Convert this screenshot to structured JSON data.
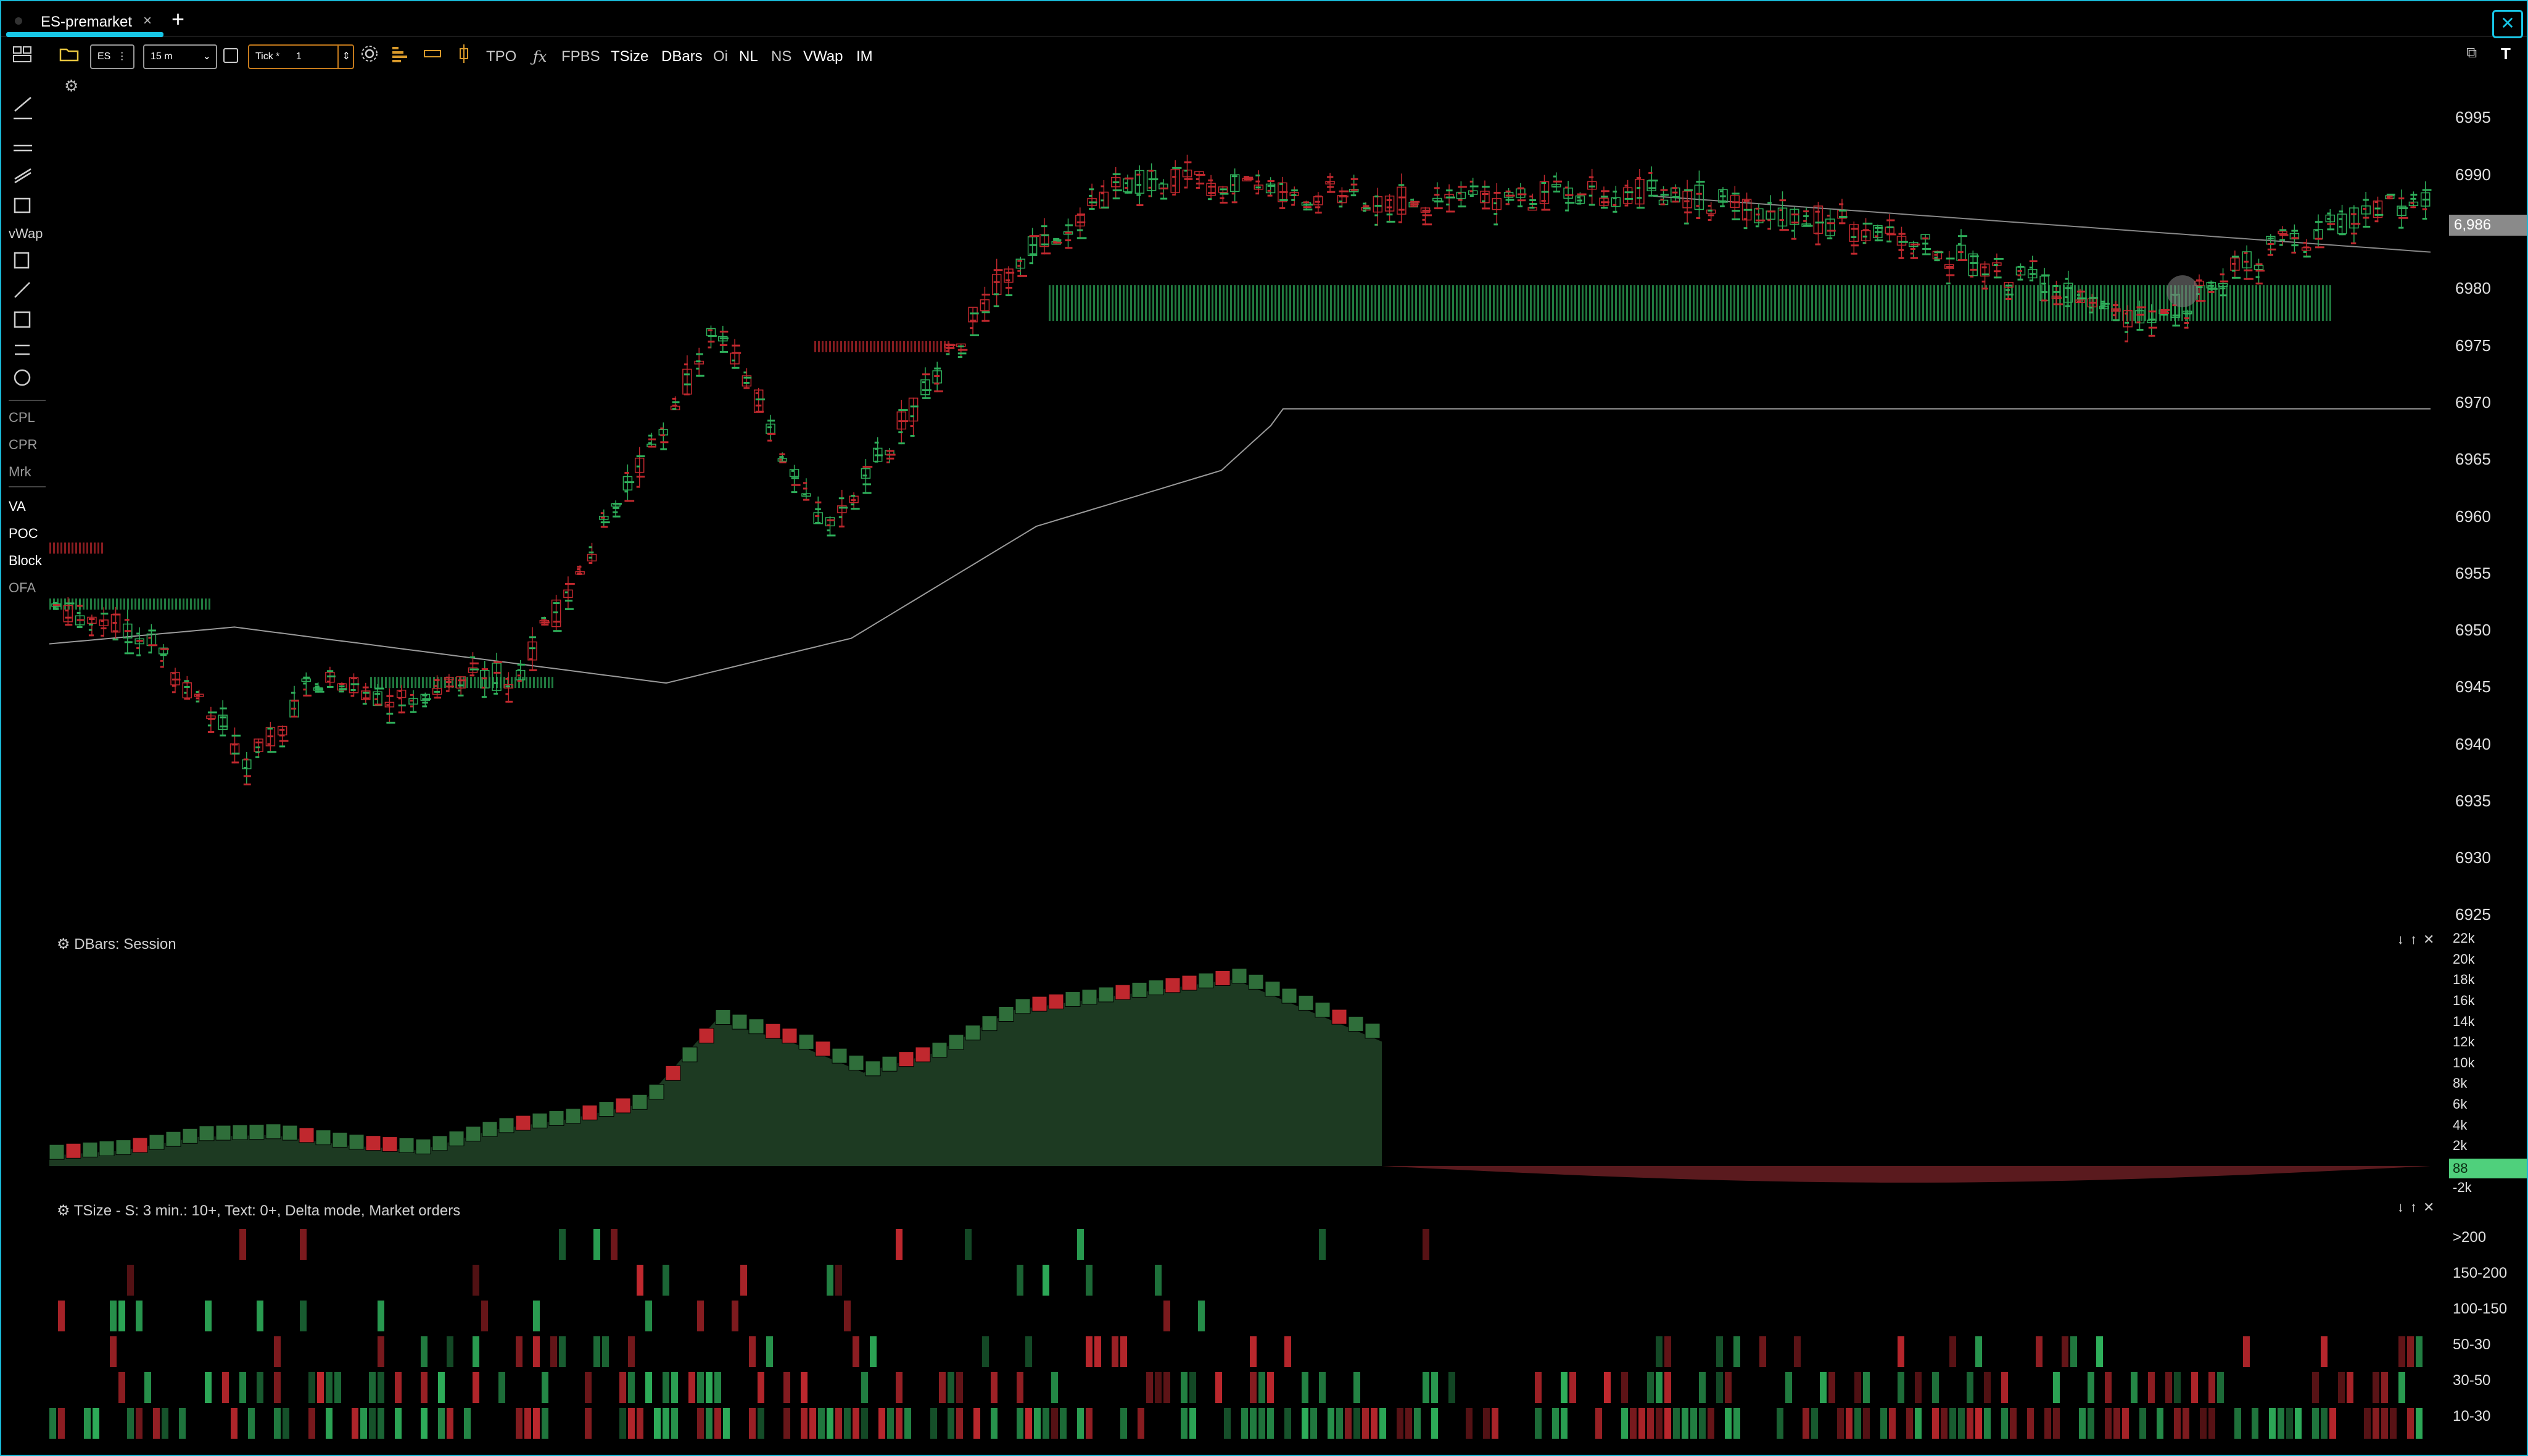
{
  "tab": {
    "label": "ES-premarket",
    "close": "×",
    "add": "+"
  },
  "toolbar": {
    "symbol": "ES",
    "symbol_menu": "⋮",
    "interval": "15 m",
    "tick_label": "Tick *",
    "tick_value": "1",
    "buttons": [
      "TPO",
      "FPBS",
      "TSize",
      "DBars",
      "Oi",
      "NL",
      "NS",
      "VWap",
      "IM"
    ]
  },
  "sidebar": {
    "vwap_label": "vWap",
    "labels": [
      "CPL",
      "CPR",
      "Mrk"
    ],
    "toggles": [
      "VA",
      "POC",
      "Block",
      "OFA"
    ]
  },
  "price_axis": {
    "ticks": [
      "6995",
      "6990",
      "6986",
      "6980",
      "6975",
      "6970",
      "6965",
      "6960",
      "6955",
      "6950",
      "6945",
      "6940",
      "6935",
      "6930",
      "6925"
    ],
    "current_price": "6,986"
  },
  "dbars_panel": {
    "title": "DBars: Session",
    "ticks": [
      "22k",
      "20k",
      "18k",
      "16k",
      "14k",
      "12k",
      "10k",
      "8k",
      "6k",
      "4k",
      "2k",
      "-2k"
    ],
    "current_value": "88"
  },
  "tsize_panel": {
    "title": "TSize - S: 3 min.: 10+, Text: 0+, Delta mode,  Market orders",
    "rows": [
      ">200",
      "150-200",
      "100-150",
      "50-30",
      "30-50",
      "10-30"
    ]
  },
  "colors": {
    "accent": "#17c6e6",
    "bull": "#2eae5a",
    "bear": "#c0282e",
    "panel_fill": "#1d3a22"
  },
  "chart_data": [
    {
      "type": "line",
      "title": "",
      "xlabel": "",
      "ylabel": "",
      "description_series": [
        {
          "name": "",
          "values": [
            6952,
            6949,
            6938,
            6945,
            6944,
            6946,
            6977,
            6958,
            6983,
            6990,
            6988,
            6989,
            6986,
            6982,
            6977,
            6984,
            6989
          ]
        }
      ],
      "ylim": [
        6925,
        6995
      ]
    },
    {
      "type": "area",
      "title": "DBars: Session",
      "values": [
        1,
        1.5,
        2.8,
        3,
        2,
        1.5,
        3.5,
        4.5,
        6,
        14,
        12,
        9,
        11,
        15,
        16,
        17,
        18,
        15,
        12,
        0,
        -1,
        -2,
        -2.5,
        -1
      ],
      "ylim": [
        -2,
        22
      ]
    }
  ]
}
